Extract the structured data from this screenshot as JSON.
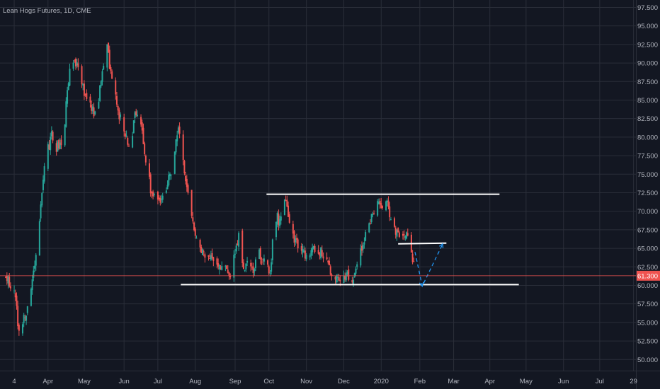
{
  "title": "Lean Hogs Futures, 1D, CME",
  "colors": {
    "background": "#131722",
    "grid": "#2a2e39",
    "up": "#26a69a",
    "down": "#ef5350",
    "axis_text": "#b2b5be",
    "price_line": "#ef5350",
    "price_tag": "#ef5350",
    "drawing": "#ffffff",
    "projection": "#2196f3"
  },
  "chart_data": {
    "type": "candlestick",
    "interval": "1D",
    "exchange": "CME",
    "x_ticks": [
      "4",
      "Apr",
      "May",
      "Jun",
      "Jul",
      "Aug",
      "Sep",
      "Oct",
      "Nov",
      "Dec",
      "2020",
      "Feb",
      "Mar",
      "Apr",
      "May",
      "Jun",
      "Jul",
      "29"
    ],
    "y_ticks": [
      50.0,
      52.5,
      55.0,
      57.5,
      60.0,
      62.5,
      65.0,
      67.5,
      70.0,
      72.5,
      75.0,
      77.5,
      80.0,
      82.5,
      85.0,
      87.5,
      90.0,
      92.5,
      95.0,
      97.5
    ],
    "y_tick_labels": [
      "50.000",
      "52.500",
      "55.000",
      "57.500",
      "60.000",
      "62.500",
      "65.000",
      "67.500",
      "70.000",
      "72.500",
      "75.000",
      "77.500",
      "80.000",
      "82.500",
      "85.000",
      "87.500",
      "90.000",
      "92.500",
      "95.000",
      "97.500"
    ],
    "ylim": [
      48.5,
      98.5
    ],
    "last_price": 61.3,
    "last_price_label": "61.300",
    "price_path": [
      [
        "2019-02-25",
        61.0
      ],
      [
        "2019-03-04",
        59.5
      ],
      [
        "2019-03-08",
        53.5
      ],
      [
        "2019-03-14",
        56.5
      ],
      [
        "2019-03-20",
        62.0
      ],
      [
        "2019-03-25",
        69.0
      ],
      [
        "2019-03-30",
        77.0
      ],
      [
        "2019-04-04",
        80.5
      ],
      [
        "2019-04-07",
        78.5
      ],
      [
        "2019-04-14",
        79.0
      ],
      [
        "2019-04-17",
        87.0
      ],
      [
        "2019-04-21",
        90.0
      ],
      [
        "2019-04-27",
        89.5
      ],
      [
        "2019-05-02",
        85.0
      ],
      [
        "2019-05-07",
        84.0
      ],
      [
        "2019-05-11",
        82.5
      ],
      [
        "2019-05-15",
        88.0
      ],
      [
        "2019-05-20",
        92.0
      ],
      [
        "2019-05-24",
        88.0
      ],
      [
        "2019-05-30",
        83.0
      ],
      [
        "2019-06-05",
        80.0
      ],
      [
        "2019-06-09",
        78.5
      ],
      [
        "2019-06-12",
        84.0
      ],
      [
        "2019-06-16",
        83.0
      ],
      [
        "2019-06-20",
        78.0
      ],
      [
        "2019-06-25",
        73.0
      ],
      [
        "2019-07-02",
        71.0
      ],
      [
        "2019-07-07",
        72.5
      ],
      [
        "2019-07-13",
        76.0
      ],
      [
        "2019-07-18",
        81.5
      ],
      [
        "2019-07-21",
        78.0
      ],
      [
        "2019-07-26",
        72.0
      ],
      [
        "2019-07-31",
        68.0
      ],
      [
        "2019-08-05",
        65.0
      ],
      [
        "2019-08-12",
        64.0
      ],
      [
        "2019-08-17",
        63.5
      ],
      [
        "2019-08-24",
        62.5
      ],
      [
        "2019-08-30",
        61.0
      ],
      [
        "2019-09-03",
        65.0
      ],
      [
        "2019-09-06",
        66.5
      ],
      [
        "2019-09-10",
        62.5
      ],
      [
        "2019-09-14",
        63.0
      ],
      [
        "2019-09-18",
        61.5
      ],
      [
        "2019-09-22",
        65.0
      ],
      [
        "2019-09-27",
        63.0
      ],
      [
        "2019-10-02",
        62.0
      ],
      [
        "2019-10-06",
        69.5
      ],
      [
        "2019-10-10",
        68.5
      ],
      [
        "2019-10-14",
        71.5
      ],
      [
        "2019-10-20",
        67.0
      ],
      [
        "2019-10-27",
        64.5
      ],
      [
        "2019-11-03",
        64.0
      ],
      [
        "2019-11-10",
        65.0
      ],
      [
        "2019-11-15",
        64.0
      ],
      [
        "2019-11-21",
        62.0
      ],
      [
        "2019-11-27",
        60.8
      ],
      [
        "2019-12-03",
        61.5
      ],
      [
        "2019-12-09",
        60.8
      ],
      [
        "2019-12-23",
        68.5
      ],
      [
        "2019-12-29",
        70.5
      ],
      [
        "2020-01-03",
        71.0
      ],
      [
        "2020-01-06",
        71.5
      ],
      [
        "2020-01-10",
        69.0
      ],
      [
        "2020-01-14",
        67.5
      ],
      [
        "2020-01-19",
        67.0
      ],
      [
        "2020-01-23",
        67.5
      ],
      [
        "2020-01-26",
        66.0
      ],
      [
        "2020-01-30",
        61.3
      ]
    ],
    "drawings": [
      {
        "kind": "trendline",
        "points": [
          [
            "2019-09-29",
            72.3
          ],
          [
            "2020-04-09",
            72.3
          ]
        ]
      },
      {
        "kind": "trendline",
        "points": [
          [
            "2019-07-20",
            60.1
          ],
          [
            "2020-04-25",
            60.1
          ]
        ]
      },
      {
        "kind": "trendline",
        "points": [
          [
            "2020-01-16",
            65.6
          ],
          [
            "2020-02-25",
            65.7
          ]
        ]
      },
      {
        "kind": "projection",
        "points": [
          [
            "2020-01-30",
            64.5
          ],
          [
            "2020-02-05",
            59.9
          ],
          [
            "2020-02-22",
            65.6
          ]
        ]
      }
    ]
  }
}
